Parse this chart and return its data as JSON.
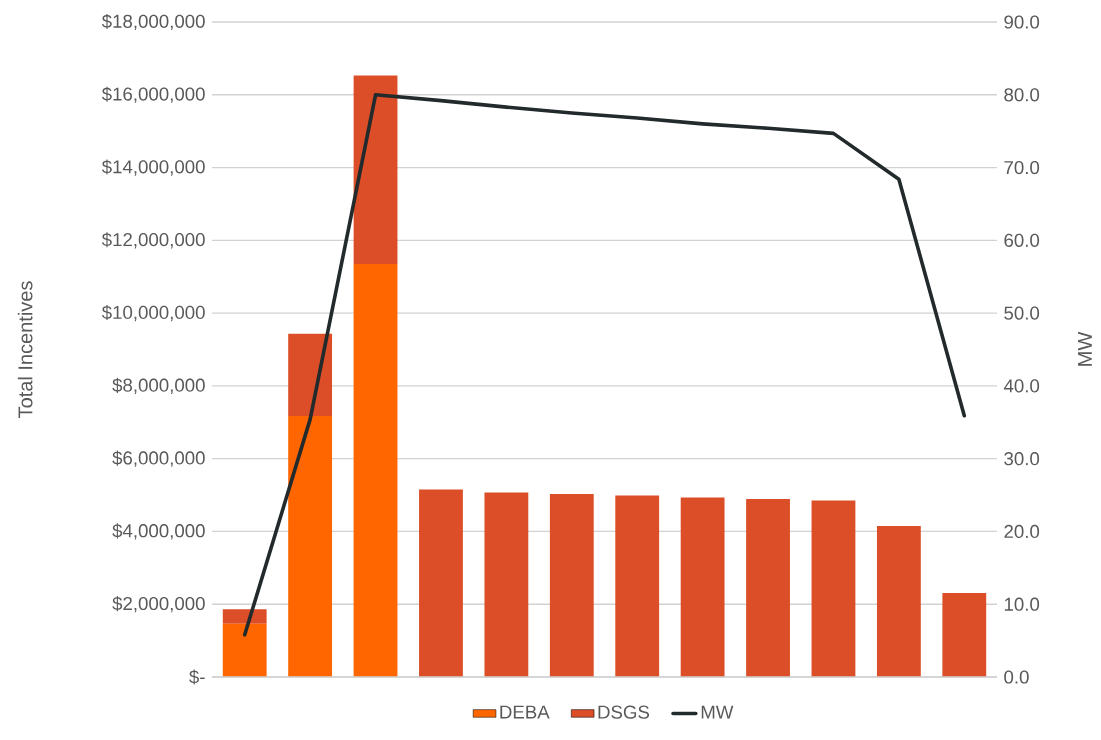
{
  "chart_data": {
    "type": "bar",
    "stacked": true,
    "categories": [
      null,
      null,
      null,
      null,
      null,
      null,
      null,
      null,
      null,
      null,
      null,
      null
    ],
    "series": [
      {
        "name": "DEBA",
        "color": "#ff6600",
        "values": [
          1460000,
          7170000,
          11350000,
          0,
          0,
          0,
          0,
          0,
          0,
          0,
          0,
          0
        ]
      },
      {
        "name": "DSGS",
        "color": "#db4e27",
        "values": [
          400000,
          2260000,
          5180000,
          5150000,
          5070000,
          5030000,
          4990000,
          4930000,
          4890000,
          4850000,
          4150000,
          2310000
        ]
      },
      {
        "name": "MW",
        "color": "#222a2c",
        "type": "line",
        "axis": "y2",
        "values": [
          5.8,
          35.4,
          80.0,
          79.2,
          78.3,
          77.5,
          76.8,
          76.0,
          75.4,
          74.7,
          68.4,
          35.9
        ]
      }
    ],
    "ylabel": "Total Incentives",
    "y2label": "MW",
    "ylim": [
      0,
      18000000
    ],
    "yticks": [
      {
        "value": 0,
        "label": "$-"
      },
      {
        "value": 2000000,
        "label": "$2,000,000"
      },
      {
        "value": 4000000,
        "label": "$4,000,000"
      },
      {
        "value": 6000000,
        "label": "$6,000,000"
      },
      {
        "value": 8000000,
        "label": "$8,000,000"
      },
      {
        "value": 10000000,
        "label": "$10,000,000"
      },
      {
        "value": 12000000,
        "label": "$12,000,000"
      },
      {
        "value": 14000000,
        "label": "$14,000,000"
      },
      {
        "value": 16000000,
        "label": "$16,000,000"
      },
      {
        "value": 18000000,
        "label": "$18,000,000"
      }
    ],
    "y2lim": [
      0,
      90
    ],
    "y2ticks": [
      {
        "value": 0,
        "label": "0.0"
      },
      {
        "value": 10,
        "label": "10.0"
      },
      {
        "value": 20,
        "label": "20.0"
      },
      {
        "value": 30,
        "label": "30.0"
      },
      {
        "value": 40,
        "label": "40.0"
      },
      {
        "value": 50,
        "label": "50.0"
      },
      {
        "value": 60,
        "label": "60.0"
      },
      {
        "value": 70,
        "label": "70.0"
      },
      {
        "value": 80,
        "label": "80.0"
      },
      {
        "value": 90,
        "label": "90.0"
      }
    ],
    "grid": "y",
    "legend": "bottom"
  }
}
